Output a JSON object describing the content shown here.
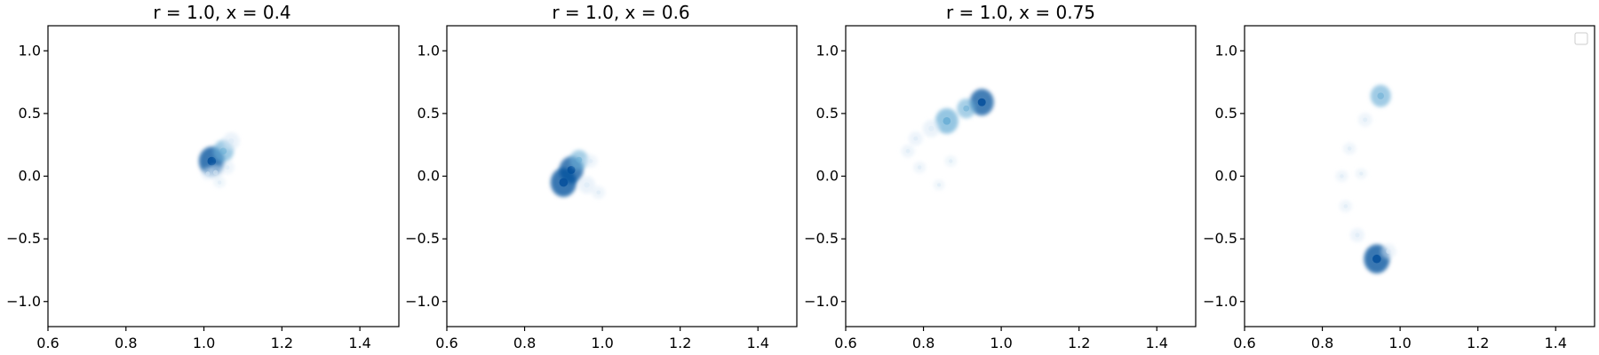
{
  "chart_data": [
    {
      "type": "heatmap",
      "title": "r = 1.0, x = 0.4",
      "xlabel": "",
      "ylabel": "",
      "xlim": [
        0.6,
        1.5
      ],
      "ylim": [
        -1.2,
        1.2
      ],
      "xticks": [
        "0.6",
        "0.8",
        "1.0",
        "1.2",
        "1.4"
      ],
      "yticks": [
        "1.0",
        "0.5",
        "0.0",
        "−0.5",
        "−1.0"
      ],
      "grid": false,
      "colormap": "Blues",
      "density_points": [
        {
          "x": 1.02,
          "y": 0.12,
          "weight": 0.95
        },
        {
          "x": 1.05,
          "y": 0.2,
          "weight": 0.65
        },
        {
          "x": 1.07,
          "y": 0.28,
          "weight": 0.45
        },
        {
          "x": 1.03,
          "y": 0.03,
          "weight": 0.35
        },
        {
          "x": 1.06,
          "y": 0.07,
          "weight": 0.28
        },
        {
          "x": 1.04,
          "y": -0.05,
          "weight": 0.18
        },
        {
          "x": 1.01,
          "y": 0.02,
          "weight": 0.25
        }
      ]
    },
    {
      "type": "heatmap",
      "title": "r = 1.0, x = 0.6",
      "xlabel": "",
      "ylabel": "",
      "xlim": [
        0.6,
        1.5
      ],
      "ylim": [
        -1.2,
        1.2
      ],
      "xticks": [
        "0.6",
        "0.8",
        "1.0",
        "1.2",
        "1.4"
      ],
      "yticks": [
        "1.0",
        "0.5",
        "0.0",
        "−0.5",
        "−1.0"
      ],
      "grid": false,
      "colormap": "Blues",
      "density_points": [
        {
          "x": 0.92,
          "y": 0.05,
          "weight": 0.85
        },
        {
          "x": 0.9,
          "y": -0.05,
          "weight": 0.95
        },
        {
          "x": 0.94,
          "y": 0.13,
          "weight": 0.55
        },
        {
          "x": 0.96,
          "y": -0.07,
          "weight": 0.45
        },
        {
          "x": 0.99,
          "y": -0.13,
          "weight": 0.25
        },
        {
          "x": 0.97,
          "y": 0.12,
          "weight": 0.25
        }
      ]
    },
    {
      "type": "heatmap",
      "title": "r = 1.0, x = 0.75",
      "xlabel": "",
      "ylabel": "",
      "xlim": [
        0.6,
        1.5
      ],
      "ylim": [
        -1.2,
        1.2
      ],
      "xticks": [
        "0.6",
        "0.8",
        "1.0",
        "1.2",
        "1.4"
      ],
      "yticks": [
        "1.0",
        "0.5",
        "0.0",
        "−0.5",
        "−1.0"
      ],
      "grid": false,
      "colormap": "Blues",
      "density_points": [
        {
          "x": 0.95,
          "y": 0.59,
          "weight": 0.85
        },
        {
          "x": 0.91,
          "y": 0.54,
          "weight": 0.55
        },
        {
          "x": 0.86,
          "y": 0.44,
          "weight": 0.8
        },
        {
          "x": 0.82,
          "y": 0.38,
          "weight": 0.45
        },
        {
          "x": 0.78,
          "y": 0.3,
          "weight": 0.3
        },
        {
          "x": 0.76,
          "y": 0.2,
          "weight": 0.25
        },
        {
          "x": 0.79,
          "y": 0.07,
          "weight": 0.2
        },
        {
          "x": 0.84,
          "y": -0.07,
          "weight": 0.15
        },
        {
          "x": 0.87,
          "y": 0.12,
          "weight": 0.18
        }
      ]
    },
    {
      "type": "heatmap",
      "title": "",
      "xlabel": "",
      "ylabel": "",
      "xlim": [
        0.6,
        1.5
      ],
      "ylim": [
        -1.2,
        1.2
      ],
      "xticks": [
        "0.6",
        "0.8",
        "1.0",
        "1.2",
        "1.4"
      ],
      "yticks": [
        "1.0",
        "0.5",
        "0.0",
        "−0.5",
        "−1.0"
      ],
      "grid": false,
      "colormap": "Blues",
      "legend": "top-right (empty)",
      "density_points": [
        {
          "x": 0.95,
          "y": 0.64,
          "weight": 0.65
        },
        {
          "x": 0.91,
          "y": 0.45,
          "weight": 0.28
        },
        {
          "x": 0.87,
          "y": 0.22,
          "weight": 0.22
        },
        {
          "x": 0.85,
          "y": 0.0,
          "weight": 0.2
        },
        {
          "x": 0.86,
          "y": -0.24,
          "weight": 0.22
        },
        {
          "x": 0.89,
          "y": -0.47,
          "weight": 0.3
        },
        {
          "x": 0.94,
          "y": -0.66,
          "weight": 0.95
        },
        {
          "x": 0.97,
          "y": -0.6,
          "weight": 0.35
        },
        {
          "x": 0.9,
          "y": 0.02,
          "weight": 0.16
        }
      ]
    }
  ],
  "colors": {
    "light_blue": "#dbe9f6",
    "mid_blue": "#6aaed6",
    "dark_blue": "#08519c",
    "axis": "#000000",
    "legend_border": "#cccccc"
  }
}
